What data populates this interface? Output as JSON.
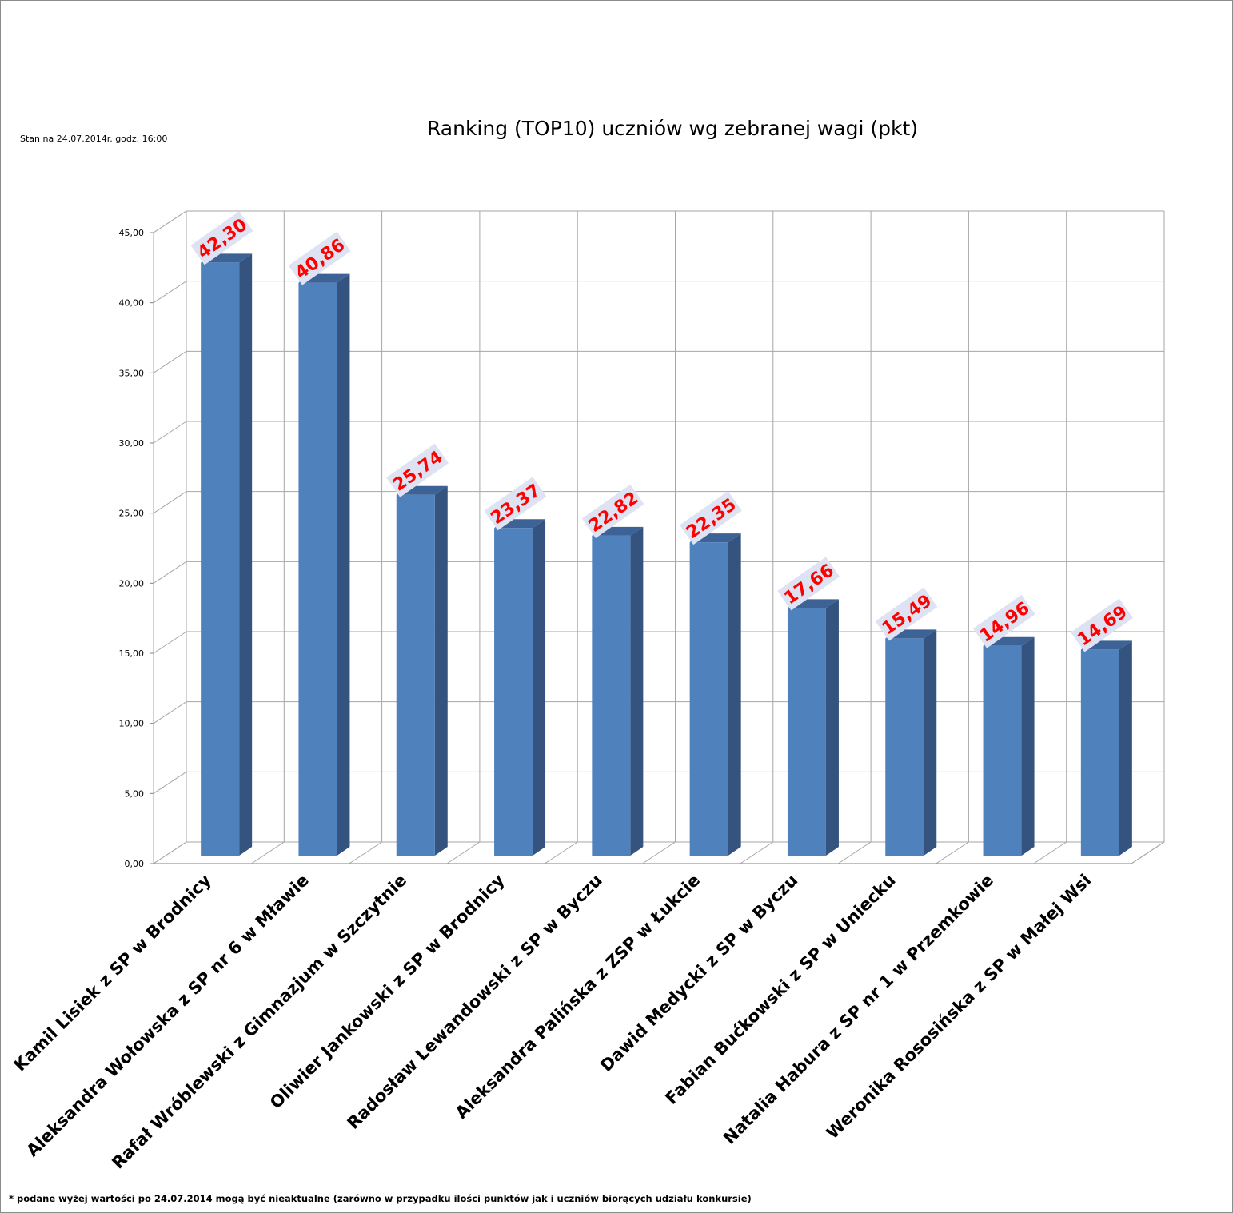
{
  "header": {
    "title": "Ranking (TOP10) uczniów wg zebranej wagi (pkt)",
    "subtitle": "Stan na 24.07.2014r.  godz. 16:00"
  },
  "footer": {
    "note": "* podane wyżej wartości po 24.07.2014  mogą być nieaktualne (zarówno w przypadku ilości punktów jak i uczniów biorących udziału konkursie)"
  },
  "colors": {
    "bar_front": "#4f81bd",
    "bar_side": "#34537e",
    "bar_top": "#3d6396",
    "label_text": "#ff0000",
    "label_box": "#dde3f2",
    "grid": "#a6a6a6"
  },
  "chart_data": {
    "type": "bar",
    "title": "Ranking (TOP10) uczniów wg zebranej wagi (pkt)",
    "xlabel": "",
    "ylabel": "",
    "ylim": [
      0,
      45
    ],
    "yticks": [
      "0,00",
      "5,00",
      "10,00",
      "15,00",
      "20,00",
      "25,00",
      "30,00",
      "35,00",
      "40,00",
      "45,00"
    ],
    "grid": true,
    "style": "3d-column",
    "categories": [
      "Kamil Lisiek z SP w Brodnicy",
      "Aleksandra Wołowska z SP nr 6 w Mławie",
      "Rafał Wróblewski z Gimnazjum w Szczytnie",
      "Oliwier Jankowski z SP w Brodnicy",
      "Radosław Lewandowski z SP w Byczu",
      "Aleksandra Palińska z ZSP w Łukcie",
      "Dawid Medycki z SP w Byczu",
      "Fabian Bućkowski z SP w Uniecku",
      "Natalia Habura z SP nr 1 w Przemkowie",
      "Weronika Rososińska z SP w Małej Wsi"
    ],
    "values": [
      42.3,
      40.86,
      25.74,
      23.37,
      22.82,
      22.35,
      17.66,
      15.49,
      14.96,
      14.69
    ],
    "data_labels": [
      "42,30",
      "40,86",
      "25,74",
      "23,37",
      "22,82",
      "22,35",
      "17,66",
      "15,49",
      "14,96",
      "14,69"
    ]
  }
}
